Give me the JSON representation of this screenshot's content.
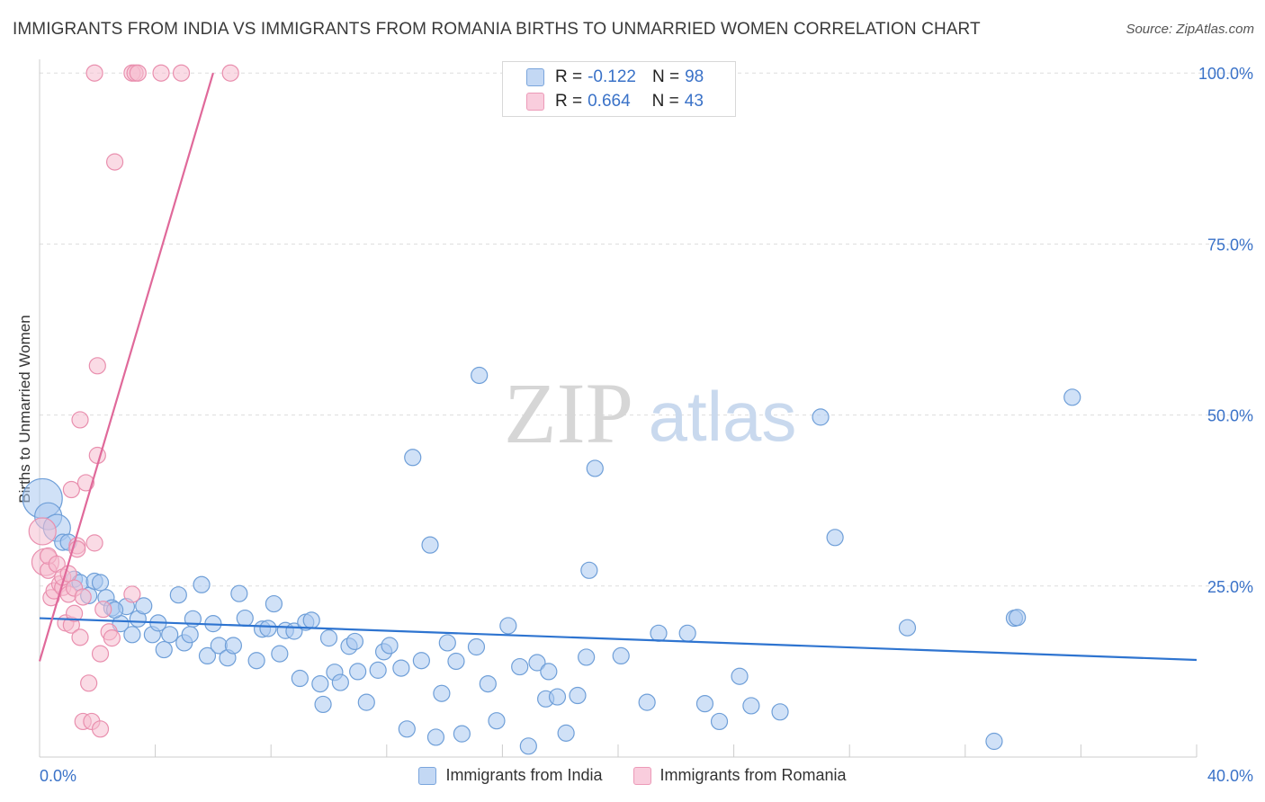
{
  "title": "IMMIGRANTS FROM INDIA VS IMMIGRANTS FROM ROMANIA BIRTHS TO UNMARRIED WOMEN CORRELATION CHART",
  "source": "Source: ZipAtlas.com",
  "watermark": {
    "zip": "ZIP",
    "atlas": "atlas"
  },
  "stats": [
    {
      "r_label": "R =",
      "r_value": "-0.122",
      "n_label": "N =",
      "n_value": "98"
    },
    {
      "r_label": "R =",
      "r_value": "0.664",
      "n_label": "N =",
      "n_value": "43"
    }
  ],
  "colors": {
    "india_fill": "#aac8f0",
    "india_stroke": "#6f9fd8",
    "india_line": "#2e74d0",
    "romania_fill": "#f6bdd0",
    "romania_stroke": "#e98fae",
    "romania_line": "#e0699a",
    "axis_text": "#3a72c8",
    "grid": "#dddddd"
  },
  "chart_data": {
    "type": "scatter",
    "title": "IMMIGRANTS FROM INDIA VS IMMIGRANTS FROM ROMANIA BIRTHS TO UNMARRIED WOMEN CORRELATION CHART",
    "xlabel": "",
    "ylabel": "Births to Unmarried Women",
    "xlim": [
      0,
      40
    ],
    "ylim": [
      0,
      102
    ],
    "x_tick_labels": [
      "0.0%",
      "40.0%"
    ],
    "y_ticks": [
      {
        "value": 25,
        "label": "25.0%"
      },
      {
        "value": 50,
        "label": "50.0%"
      },
      {
        "value": 75,
        "label": "75.0%"
      },
      {
        "value": 100,
        "label": "100.0%"
      }
    ],
    "grid": true,
    "legend_position": "bottom-center",
    "series": [
      {
        "name": "Immigrants from India",
        "r": -0.122,
        "n": 98,
        "trend": {
          "x0": 0,
          "y0": 20.3,
          "x1": 40,
          "y1": 14.2
        },
        "points": [
          {
            "x": 0.1,
            "y": 37.8,
            "s": 3
          },
          {
            "x": 0.3,
            "y": 35.2,
            "s": 2
          },
          {
            "x": 0.6,
            "y": 33.5,
            "s": 2
          },
          {
            "x": 0.8,
            "y": 31.4,
            "s": 1
          },
          {
            "x": 1.0,
            "y": 31.4,
            "s": 1
          },
          {
            "x": 1.2,
            "y": 26.0,
            "s": 1
          },
          {
            "x": 1.4,
            "y": 25.5,
            "s": 1
          },
          {
            "x": 1.7,
            "y": 23.6,
            "s": 1
          },
          {
            "x": 1.9,
            "y": 25.7,
            "s": 1
          },
          {
            "x": 2.1,
            "y": 25.5,
            "s": 1
          },
          {
            "x": 2.3,
            "y": 23.3,
            "s": 1
          },
          {
            "x": 2.5,
            "y": 21.8,
            "s": 1
          },
          {
            "x": 2.8,
            "y": 19.5,
            "s": 1
          },
          {
            "x": 3.0,
            "y": 22.0,
            "s": 1
          },
          {
            "x": 3.2,
            "y": 17.9,
            "s": 1
          },
          {
            "x": 3.4,
            "y": 20.2,
            "s": 1
          },
          {
            "x": 3.6,
            "y": 22.1,
            "s": 1
          },
          {
            "x": 3.9,
            "y": 17.9,
            "s": 1
          },
          {
            "x": 4.1,
            "y": 19.6,
            "s": 1
          },
          {
            "x": 4.3,
            "y": 15.7,
            "s": 1
          },
          {
            "x": 4.5,
            "y": 17.9,
            "s": 1
          },
          {
            "x": 4.8,
            "y": 23.7,
            "s": 1
          },
          {
            "x": 5.0,
            "y": 16.7,
            "s": 1
          },
          {
            "x": 5.2,
            "y": 17.9,
            "s": 1
          },
          {
            "x": 5.3,
            "y": 20.2,
            "s": 1
          },
          {
            "x": 5.6,
            "y": 25.2,
            "s": 1
          },
          {
            "x": 5.8,
            "y": 14.8,
            "s": 1
          },
          {
            "x": 6.0,
            "y": 19.5,
            "s": 1
          },
          {
            "x": 6.2,
            "y": 16.3,
            "s": 1
          },
          {
            "x": 6.5,
            "y": 14.5,
            "s": 1
          },
          {
            "x": 6.7,
            "y": 16.3,
            "s": 1
          },
          {
            "x": 6.9,
            "y": 23.9,
            "s": 1
          },
          {
            "x": 7.1,
            "y": 20.3,
            "s": 1
          },
          {
            "x": 7.5,
            "y": 14.1,
            "s": 1
          },
          {
            "x": 7.7,
            "y": 18.7,
            "s": 1
          },
          {
            "x": 7.9,
            "y": 18.8,
            "s": 1
          },
          {
            "x": 8.1,
            "y": 22.4,
            "s": 1
          },
          {
            "x": 8.3,
            "y": 15.1,
            "s": 1
          },
          {
            "x": 8.5,
            "y": 18.5,
            "s": 1
          },
          {
            "x": 8.8,
            "y": 18.4,
            "s": 1
          },
          {
            "x": 9.0,
            "y": 11.5,
            "s": 1
          },
          {
            "x": 9.2,
            "y": 19.7,
            "s": 1
          },
          {
            "x": 9.4,
            "y": 20.0,
            "s": 1
          },
          {
            "x": 9.7,
            "y": 10.7,
            "s": 1
          },
          {
            "x": 9.8,
            "y": 7.7,
            "s": 1
          },
          {
            "x": 10.0,
            "y": 17.4,
            "s": 1
          },
          {
            "x": 10.2,
            "y": 12.4,
            "s": 1
          },
          {
            "x": 10.4,
            "y": 10.9,
            "s": 1
          },
          {
            "x": 10.7,
            "y": 16.2,
            "s": 1
          },
          {
            "x": 10.9,
            "y": 16.9,
            "s": 1
          },
          {
            "x": 11.0,
            "y": 12.5,
            "s": 1
          },
          {
            "x": 11.3,
            "y": 8.0,
            "s": 1
          },
          {
            "x": 11.7,
            "y": 12.7,
            "s": 1
          },
          {
            "x": 11.9,
            "y": 15.4,
            "s": 1
          },
          {
            "x": 12.1,
            "y": 16.3,
            "s": 1
          },
          {
            "x": 12.5,
            "y": 13.0,
            "s": 1
          },
          {
            "x": 12.7,
            "y": 4.1,
            "s": 1
          },
          {
            "x": 12.9,
            "y": 43.8,
            "s": 1
          },
          {
            "x": 13.2,
            "y": 14.1,
            "s": 1
          },
          {
            "x": 13.5,
            "y": 31.0,
            "s": 1
          },
          {
            "x": 13.7,
            "y": 2.9,
            "s": 1
          },
          {
            "x": 13.9,
            "y": 9.3,
            "s": 1
          },
          {
            "x": 14.1,
            "y": 16.7,
            "s": 1
          },
          {
            "x": 14.4,
            "y": 14.0,
            "s": 1
          },
          {
            "x": 14.6,
            "y": 3.4,
            "s": 1
          },
          {
            "x": 15.1,
            "y": 16.1,
            "s": 1
          },
          {
            "x": 15.2,
            "y": 55.8,
            "s": 1
          },
          {
            "x": 15.5,
            "y": 10.7,
            "s": 1
          },
          {
            "x": 15.8,
            "y": 5.3,
            "s": 1
          },
          {
            "x": 16.2,
            "y": 19.2,
            "s": 1
          },
          {
            "x": 16.6,
            "y": 13.2,
            "s": 1
          },
          {
            "x": 16.9,
            "y": 1.6,
            "s": 1
          },
          {
            "x": 17.2,
            "y": 13.8,
            "s": 1
          },
          {
            "x": 17.5,
            "y": 8.5,
            "s": 1
          },
          {
            "x": 17.6,
            "y": 12.5,
            "s": 1
          },
          {
            "x": 17.9,
            "y": 8.8,
            "s": 1
          },
          {
            "x": 18.2,
            "y": 3.5,
            "s": 1
          },
          {
            "x": 18.6,
            "y": 9.0,
            "s": 1
          },
          {
            "x": 18.9,
            "y": 14.6,
            "s": 1
          },
          {
            "x": 19.0,
            "y": 27.3,
            "s": 1
          },
          {
            "x": 19.2,
            "y": 42.2,
            "s": 1
          },
          {
            "x": 20.1,
            "y": 14.8,
            "s": 1
          },
          {
            "x": 21.0,
            "y": 8.0,
            "s": 1
          },
          {
            "x": 21.4,
            "y": 18.1,
            "s": 1
          },
          {
            "x": 22.4,
            "y": 18.1,
            "s": 1
          },
          {
            "x": 23.0,
            "y": 7.8,
            "s": 1
          },
          {
            "x": 23.5,
            "y": 5.2,
            "s": 1
          },
          {
            "x": 24.2,
            "y": 11.8,
            "s": 1
          },
          {
            "x": 24.6,
            "y": 7.5,
            "s": 1
          },
          {
            "x": 25.6,
            "y": 6.6,
            "s": 1
          },
          {
            "x": 27.0,
            "y": 49.7,
            "s": 1
          },
          {
            "x": 27.5,
            "y": 32.1,
            "s": 1
          },
          {
            "x": 30.0,
            "y": 18.9,
            "s": 1
          },
          {
            "x": 33.0,
            "y": 2.3,
            "s": 1
          },
          {
            "x": 33.7,
            "y": 20.3,
            "s": 1
          },
          {
            "x": 33.8,
            "y": 20.4,
            "s": 1
          },
          {
            "x": 35.7,
            "y": 52.6,
            "s": 1
          },
          {
            "x": 2.6,
            "y": 21.5,
            "s": 1
          }
        ]
      },
      {
        "name": "Immigrants from Romania",
        "r": 0.664,
        "n": 43,
        "trend": {
          "x0": 0,
          "y0": 14.0,
          "x1": 6.0,
          "y1": 100.0
        },
        "points": [
          {
            "x": 0.1,
            "y": 33.0,
            "s": 2
          },
          {
            "x": 0.2,
            "y": 28.5,
            "s": 2
          },
          {
            "x": 0.3,
            "y": 27.3,
            "s": 1
          },
          {
            "x": 0.3,
            "y": 29.4,
            "s": 1
          },
          {
            "x": 0.4,
            "y": 23.3,
            "s": 1
          },
          {
            "x": 0.5,
            "y": 24.3,
            "s": 1
          },
          {
            "x": 0.6,
            "y": 28.2,
            "s": 1
          },
          {
            "x": 0.7,
            "y": 25.3,
            "s": 1
          },
          {
            "x": 0.8,
            "y": 24.8,
            "s": 1
          },
          {
            "x": 0.8,
            "y": 26.3,
            "s": 1
          },
          {
            "x": 0.9,
            "y": 19.6,
            "s": 1
          },
          {
            "x": 1.0,
            "y": 26.8,
            "s": 1
          },
          {
            "x": 1.0,
            "y": 23.8,
            "s": 1
          },
          {
            "x": 1.1,
            "y": 39.1,
            "s": 1
          },
          {
            "x": 1.1,
            "y": 19.3,
            "s": 1
          },
          {
            "x": 1.2,
            "y": 24.7,
            "s": 1
          },
          {
            "x": 1.2,
            "y": 21.0,
            "s": 1
          },
          {
            "x": 1.3,
            "y": 30.9,
            "s": 1
          },
          {
            "x": 1.3,
            "y": 30.4,
            "s": 1
          },
          {
            "x": 1.4,
            "y": 17.5,
            "s": 1
          },
          {
            "x": 1.4,
            "y": 49.3,
            "s": 1
          },
          {
            "x": 1.5,
            "y": 5.2,
            "s": 1
          },
          {
            "x": 1.5,
            "y": 23.4,
            "s": 1
          },
          {
            "x": 1.6,
            "y": 40.1,
            "s": 1
          },
          {
            "x": 1.7,
            "y": 10.8,
            "s": 1
          },
          {
            "x": 1.8,
            "y": 5.2,
            "s": 1
          },
          {
            "x": 1.9,
            "y": 31.3,
            "s": 1
          },
          {
            "x": 2.0,
            "y": 44.1,
            "s": 1
          },
          {
            "x": 2.0,
            "y": 57.2,
            "s": 1
          },
          {
            "x": 2.1,
            "y": 15.1,
            "s": 1
          },
          {
            "x": 2.1,
            "y": 4.1,
            "s": 1
          },
          {
            "x": 2.2,
            "y": 21.6,
            "s": 1
          },
          {
            "x": 2.4,
            "y": 18.3,
            "s": 1
          },
          {
            "x": 2.5,
            "y": 17.4,
            "s": 1
          },
          {
            "x": 2.6,
            "y": 87.0,
            "s": 1
          },
          {
            "x": 1.9,
            "y": 100.0,
            "s": 1
          },
          {
            "x": 3.2,
            "y": 23.8,
            "s": 1
          },
          {
            "x": 3.2,
            "y": 100.0,
            "s": 1
          },
          {
            "x": 3.3,
            "y": 100.0,
            "s": 1
          },
          {
            "x": 3.4,
            "y": 100.0,
            "s": 1
          },
          {
            "x": 4.2,
            "y": 100.0,
            "s": 1
          },
          {
            "x": 4.9,
            "y": 100.0,
            "s": 1
          },
          {
            "x": 6.6,
            "y": 100.0,
            "s": 1
          }
        ]
      }
    ]
  },
  "legend": [
    {
      "name": "Immigrants from India"
    },
    {
      "name": "Immigrants from Romania"
    }
  ]
}
